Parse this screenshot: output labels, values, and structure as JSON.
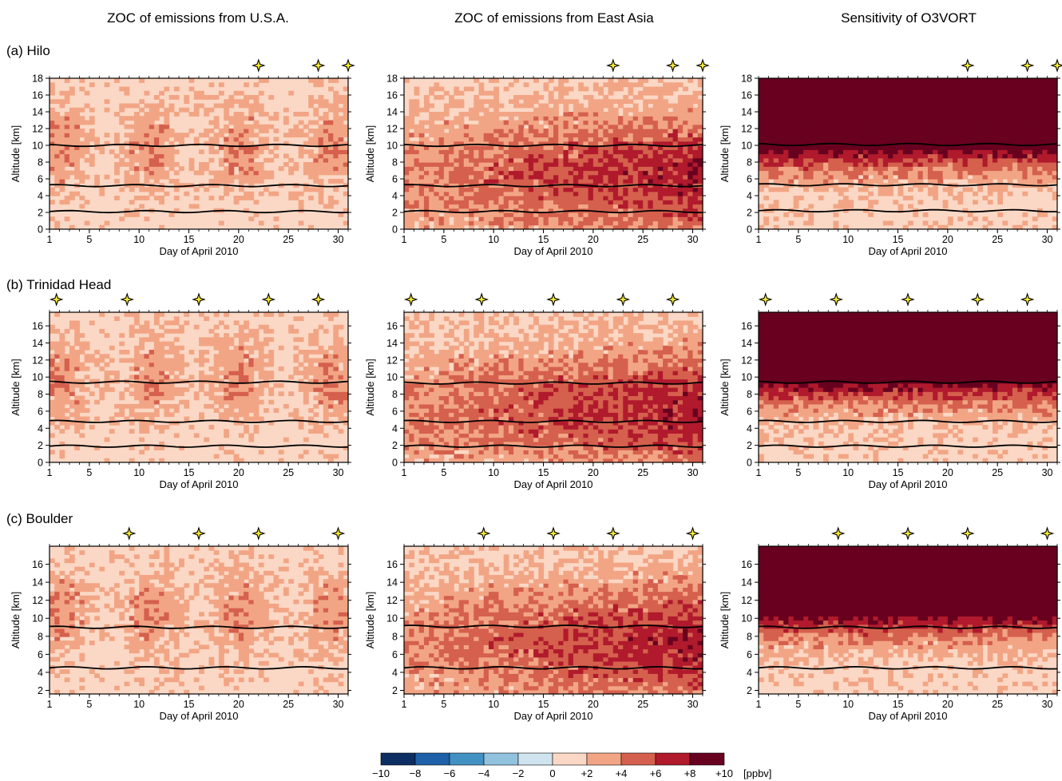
{
  "column_titles": [
    "ZOC of emissions from U.S.A.",
    "ZOC of emissions from East Asia",
    "Sensitivity of O3VORT"
  ],
  "row_labels": [
    "(a) Hilo",
    "(b) Trinidad Head",
    "(c) Boulder"
  ],
  "colorbar": {
    "levels": [
      -10,
      -8,
      -6,
      -4,
      -2,
      0,
      2,
      4,
      6,
      8,
      10
    ],
    "tick_labels": [
      "−10",
      "−8",
      "−6",
      "−4",
      "−2",
      "0",
      "+2",
      "+4",
      "+6",
      "+8",
      "+10"
    ],
    "colors": [
      "#0c2e62",
      "#1f61a9",
      "#4291c3",
      "#91c3df",
      "#d0e4ef",
      "#fbd8c5",
      "#f2a585",
      "#d5604d",
      "#b01a2c",
      "#68001f"
    ],
    "unit": "[ppbv]"
  },
  "chart_data": [
    {
      "type": "heatmap",
      "station": "Hilo",
      "column": "ZOC of emissions from U.S.A.",
      "xlabel": "Day of April 2010",
      "ylabel": "Altitude [km]",
      "xlim": [
        1,
        31
      ],
      "ylim": [
        0,
        18
      ],
      "xticks": [
        "1",
        "5",
        "10",
        "15",
        "20",
        "25",
        "30"
      ],
      "yticks": [
        "0",
        "2",
        "4",
        "6",
        "8",
        "10",
        "12",
        "14",
        "16",
        "18"
      ],
      "background_level": "0 to +2",
      "sonde_days": [
        22,
        28,
        31
      ],
      "contour_lines_km": [
        2.1,
        5.2,
        10.0
      ],
      "max_level": "+6 to +8"
    },
    {
      "type": "heatmap",
      "station": "Hilo",
      "column": "ZOC of emissions from East Asia",
      "xlabel": "Day of April 2010",
      "ylabel": "Altitude [km]",
      "xlim": [
        1,
        31
      ],
      "ylim": [
        0,
        18
      ],
      "xticks": [
        "1",
        "5",
        "10",
        "15",
        "20",
        "25",
        "30"
      ],
      "yticks": [
        "0",
        "2",
        "4",
        "6",
        "8",
        "10",
        "12",
        "14",
        "16",
        "18"
      ],
      "background_level": "0 to +2",
      "sonde_days": [
        22,
        28,
        31
      ],
      "contour_lines_km": [
        2.1,
        5.2,
        10.0
      ],
      "max_level": "> +8"
    },
    {
      "type": "heatmap",
      "station": "Hilo",
      "column": "Sensitivity of O3VORT",
      "xlabel": "Day of April 2010",
      "ylabel": "Altitude [km]",
      "xlim": [
        1,
        31
      ],
      "ylim": [
        0,
        18
      ],
      "xticks": [
        "1",
        "5",
        "10",
        "15",
        "20",
        "25",
        "30"
      ],
      "yticks": [
        "0",
        "2",
        "4",
        "6",
        "8",
        "10",
        "12",
        "14",
        "16",
        "18"
      ],
      "background_level": "0 to +2",
      "sonde_days": [
        22,
        28,
        31
      ],
      "contour_lines_km": [
        2.2,
        5.3,
        10.1
      ],
      "max_level": "> +8"
    },
    {
      "type": "heatmap",
      "station": "Trinidad Head",
      "column": "ZOC of emissions from U.S.A.",
      "xlabel": "Day of April 2010",
      "ylabel": "Altitude [km]",
      "xlim": [
        1,
        31
      ],
      "ylim": [
        0,
        17.6
      ],
      "xticks": [
        "1",
        "5",
        "10",
        "15",
        "20",
        "25",
        "30"
      ],
      "yticks": [
        "0",
        "2",
        "4",
        "6",
        "8",
        "10",
        "12",
        "14",
        "16"
      ],
      "background_level": "0 to +2",
      "sonde_days": [
        1.7,
        8.8,
        16,
        23,
        28
      ],
      "contour_lines_km": [
        1.9,
        4.8,
        9.4
      ],
      "max_level": "> +8"
    },
    {
      "type": "heatmap",
      "station": "Trinidad Head",
      "column": "ZOC of emissions from East Asia",
      "xlabel": "Day of April 2010",
      "ylabel": "Altitude [km]",
      "xlim": [
        1,
        31
      ],
      "ylim": [
        0,
        17.6
      ],
      "xticks": [
        "1",
        "5",
        "10",
        "15",
        "20",
        "25",
        "30"
      ],
      "yticks": [
        "0",
        "2",
        "4",
        "6",
        "8",
        "10",
        "12",
        "14",
        "16"
      ],
      "background_level": "0 to +2",
      "sonde_days": [
        1.7,
        8.8,
        16,
        23,
        28
      ],
      "contour_lines_km": [
        1.9,
        4.8,
        9.3
      ],
      "max_level": "> +8"
    },
    {
      "type": "heatmap",
      "station": "Trinidad Head",
      "column": "Sensitivity of O3VORT",
      "xlabel": "Day of April 2010",
      "ylabel": "Altitude [km]",
      "xlim": [
        1,
        31
      ],
      "ylim": [
        0,
        17.6
      ],
      "xticks": [
        "1",
        "5",
        "10",
        "15",
        "20",
        "25",
        "30"
      ],
      "yticks": [
        "0",
        "2",
        "4",
        "6",
        "8",
        "10",
        "12",
        "14",
        "16"
      ],
      "background_level": "0 to +2",
      "sonde_days": [
        1.7,
        8.8,
        16,
        23,
        28
      ],
      "contour_lines_km": [
        1.9,
        4.8,
        9.4
      ],
      "max_level": "> +8"
    },
    {
      "type": "heatmap",
      "station": "Boulder",
      "column": "ZOC of emissions from U.S.A.",
      "xlabel": "Day of April 2010",
      "ylabel": "Altitude [km]",
      "xlim": [
        1,
        31
      ],
      "ylim": [
        1.6,
        18
      ],
      "xticks": [
        "1",
        "5",
        "10",
        "15",
        "20",
        "25",
        "30"
      ],
      "yticks": [
        "2",
        "4",
        "6",
        "8",
        "10",
        "12",
        "14",
        "16"
      ],
      "background_level": "0 to +2",
      "sonde_days": [
        9,
        16,
        22,
        30
      ],
      "contour_lines_km": [
        4.5,
        9.0
      ],
      "max_level": "> +8"
    },
    {
      "type": "heatmap",
      "station": "Boulder",
      "column": "ZOC of emissions from East Asia",
      "xlabel": "Day of April 2010",
      "ylabel": "Altitude [km]",
      "xlim": [
        1,
        31
      ],
      "ylim": [
        1.6,
        18
      ],
      "xticks": [
        "1",
        "5",
        "10",
        "15",
        "20",
        "25",
        "30"
      ],
      "yticks": [
        "2",
        "4",
        "6",
        "8",
        "10",
        "12",
        "14",
        "16"
      ],
      "background_level": "0 to +2",
      "sonde_days": [
        9,
        16,
        22,
        30
      ],
      "contour_lines_km": [
        4.5,
        9.1
      ],
      "max_level": "> +8"
    },
    {
      "type": "heatmap",
      "station": "Boulder",
      "column": "Sensitivity of O3VORT",
      "xlabel": "Day of April 2010",
      "ylabel": "Altitude [km]",
      "xlim": [
        1,
        31
      ],
      "ylim": [
        1.6,
        18
      ],
      "xticks": [
        "1",
        "5",
        "10",
        "15",
        "20",
        "25",
        "30"
      ],
      "yticks": [
        "2",
        "4",
        "6",
        "8",
        "10",
        "12",
        "14",
        "16"
      ],
      "background_level": "0 to +2",
      "sonde_days": [
        9,
        16,
        22,
        30
      ],
      "contour_lines_km": [
        4.5,
        9.0
      ],
      "max_level": "> +8"
    }
  ]
}
